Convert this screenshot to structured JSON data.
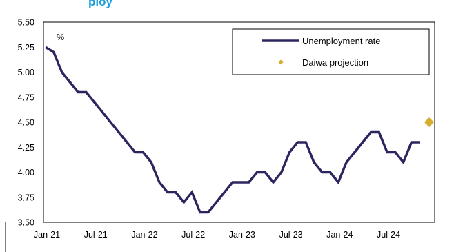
{
  "chart_data": {
    "type": "line",
    "title_fragment": "ploy",
    "unit_label": "%",
    "ylim": [
      3.5,
      5.5
    ],
    "y_ticks": [
      "5.50",
      "5.25",
      "5.00",
      "4.75",
      "4.50",
      "4.25",
      "4.00",
      "3.75",
      "3.50"
    ],
    "x_tick_labels": [
      "Jan-21",
      "Jul-21",
      "Jan-22",
      "Jul-22",
      "Jan-23",
      "Jul-23",
      "Jan-24",
      "Jul-24"
    ],
    "x_tick_month_index": [
      0,
      6,
      12,
      18,
      24,
      30,
      36,
      42
    ],
    "x_range_months": [
      0,
      47
    ],
    "grid": false,
    "legend_position": "top-right",
    "series": [
      {
        "name": "Unemployment rate",
        "color": "#2b2660",
        "marker": "line",
        "x_months": [
          0,
          1,
          2,
          3,
          4,
          5,
          6,
          7,
          8,
          9,
          10,
          11,
          12,
          13,
          14,
          15,
          16,
          17,
          18,
          19,
          20,
          21,
          22,
          23,
          24,
          25,
          26,
          27,
          28,
          29,
          30,
          31,
          32,
          33,
          34,
          35,
          36,
          37,
          38,
          39,
          40,
          41,
          42,
          43,
          44,
          45,
          46
        ],
        "values": [
          5.25,
          5.2,
          5.0,
          4.9,
          4.8,
          4.8,
          4.7,
          4.6,
          4.5,
          4.4,
          4.3,
          4.2,
          4.2,
          4.1,
          3.9,
          3.8,
          3.8,
          3.7,
          3.8,
          3.6,
          3.6,
          3.7,
          3.8,
          3.9,
          3.9,
          3.9,
          4.0,
          4.0,
          3.9,
          4.0,
          4.2,
          4.3,
          4.3,
          4.1,
          4.0,
          4.0,
          3.9,
          4.1,
          4.2,
          4.3,
          4.4,
          4.4,
          4.2,
          4.2,
          4.1,
          4.3,
          4.3
        ]
      },
      {
        "name": "Daiwa projection",
        "color": "#d4ae2c",
        "marker": "diamond",
        "x_months": [
          47
        ],
        "values": [
          4.5
        ]
      }
    ]
  },
  "legend": {
    "items": [
      {
        "label": "Unemployment rate"
      },
      {
        "label": "Daiwa projection"
      }
    ]
  }
}
